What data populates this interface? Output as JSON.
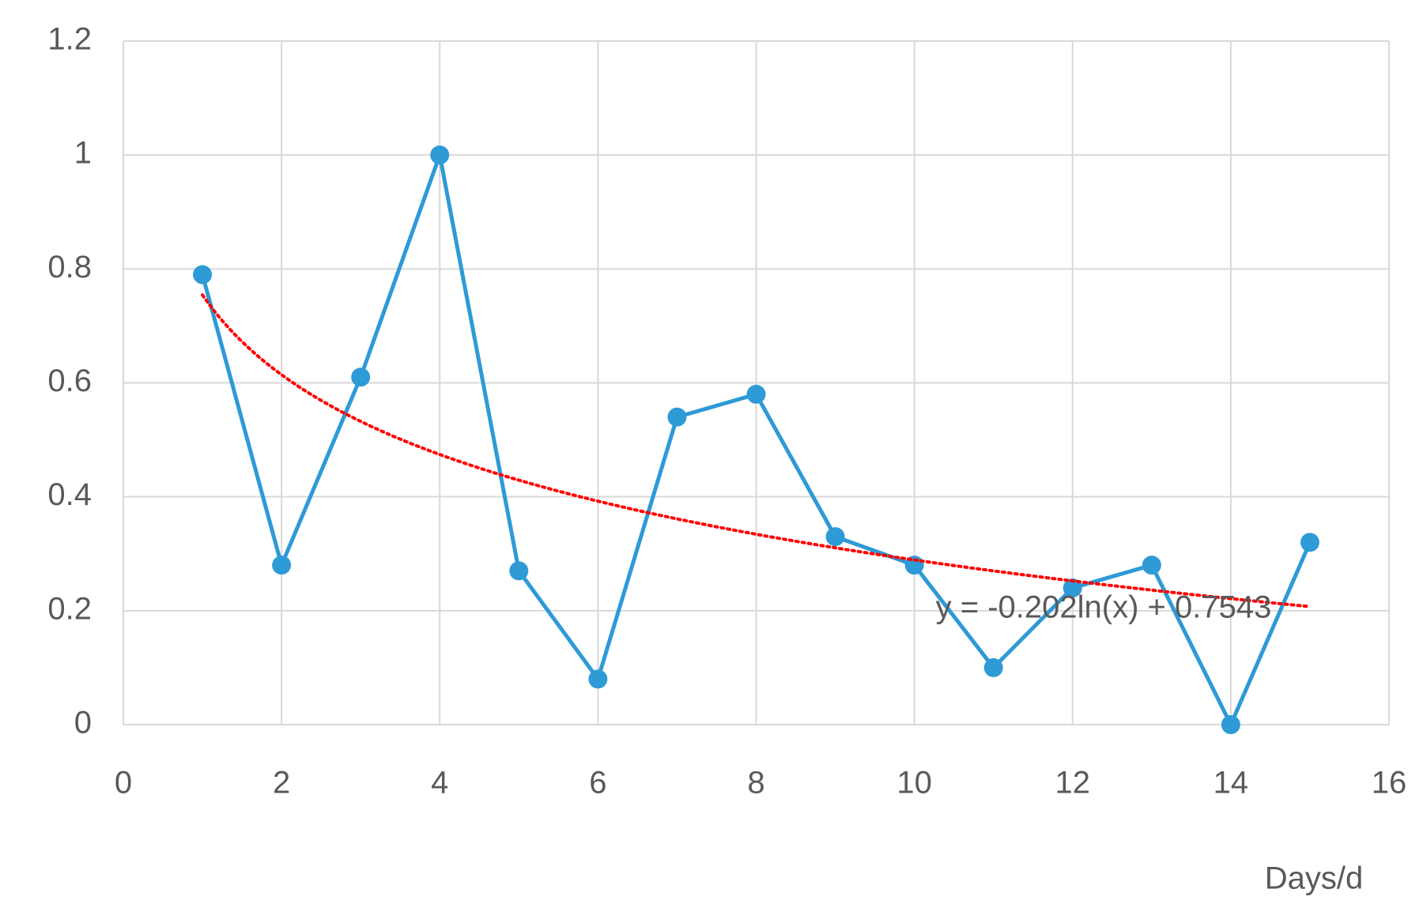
{
  "chart_data": {
    "type": "line",
    "x_label": "Days/d",
    "x": [
      1,
      2,
      3,
      4,
      5,
      6,
      7,
      8,
      9,
      10,
      11,
      12,
      13,
      14,
      15
    ],
    "series": [
      {
        "color": "#2e9ad6",
        "values": [
          0.79,
          0.28,
          0.61,
          1.0,
          0.27,
          0.08,
          0.54,
          0.58,
          0.33,
          0.28,
          0.1,
          0.24,
          0.28,
          0.0,
          0.32
        ]
      }
    ],
    "trendline": {
      "kind": "log",
      "color": "#ff0000",
      "label": "y = -0.202ln(x) + 0.7543",
      "coefficients": [
        -0.202,
        0.7543
      ]
    },
    "xlim": [
      0,
      16
    ],
    "xticks": [
      0,
      2,
      4,
      6,
      8,
      10,
      12,
      14,
      16
    ],
    "ylim": [
      0,
      1.2
    ],
    "yticks": [
      0,
      0.2,
      0.4,
      0.6,
      0.8,
      1,
      1.2
    ],
    "grid": true
  }
}
